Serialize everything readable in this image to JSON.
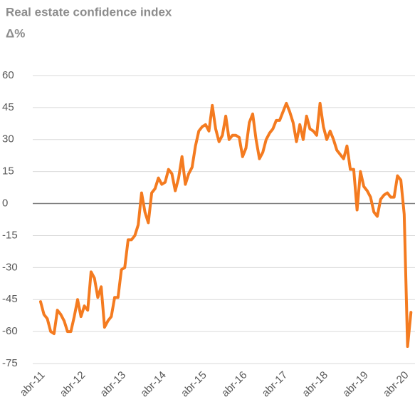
{
  "chart_data": {
    "type": "line",
    "title": "Real estate confidence index",
    "subtitle": "Δ%",
    "categories": [
      "abr-11",
      null,
      null,
      null,
      null,
      null,
      null,
      null,
      null,
      null,
      null,
      null,
      "abr-12",
      null,
      null,
      null,
      null,
      null,
      null,
      null,
      null,
      null,
      null,
      null,
      "abr-13",
      null,
      null,
      null,
      null,
      null,
      null,
      null,
      null,
      null,
      null,
      null,
      "abr-14",
      null,
      null,
      null,
      null,
      null,
      null,
      null,
      null,
      null,
      null,
      null,
      "abr-15",
      null,
      null,
      null,
      null,
      null,
      null,
      null,
      null,
      null,
      null,
      null,
      "abr-16",
      null,
      null,
      null,
      null,
      null,
      null,
      null,
      null,
      null,
      null,
      null,
      "abr-17",
      null,
      null,
      null,
      null,
      null,
      null,
      null,
      null,
      null,
      null,
      null,
      "abr-18",
      null,
      null,
      null,
      null,
      null,
      null,
      null,
      null,
      null,
      null,
      null,
      "abr-19",
      null,
      null,
      null,
      null,
      null,
      null,
      null,
      null,
      null,
      null,
      null,
      "abr-20",
      null,
      null
    ],
    "values": [
      -46,
      -52,
      -54,
      -60,
      -61,
      -50,
      -52,
      -55,
      -60,
      -60,
      -53,
      -45,
      -53,
      -48,
      -50,
      -32,
      -35,
      -44,
      -39,
      -58,
      -55,
      -53,
      -44,
      -44,
      -31,
      -30,
      -17,
      -17,
      -15,
      -10,
      5,
      -4,
      -9,
      5,
      7,
      12,
      9,
      10,
      16,
      14,
      6,
      12,
      22,
      9,
      14,
      17,
      27,
      34,
      36,
      37,
      34,
      46,
      35,
      29,
      32,
      41,
      30,
      32,
      32,
      31,
      22,
      26,
      38,
      42,
      30,
      21,
      24,
      30,
      33,
      35,
      39,
      39,
      43,
      47,
      43,
      38,
      29,
      37,
      30,
      41,
      35,
      34,
      32,
      47,
      36,
      30,
      34,
      30,
      25,
      23,
      21,
      27,
      16,
      16,
      -3,
      15,
      8,
      6,
      3,
      -4,
      -6,
      2,
      4,
      5,
      3,
      3,
      13,
      11,
      -5,
      -67,
      -51
    ],
    "color": "#f47b20",
    "ylim": [
      -75,
      60
    ],
    "yticks": [
      60,
      45,
      30,
      15,
      0,
      -15,
      -30,
      -45,
      -60,
      -75
    ],
    "grid": true
  }
}
